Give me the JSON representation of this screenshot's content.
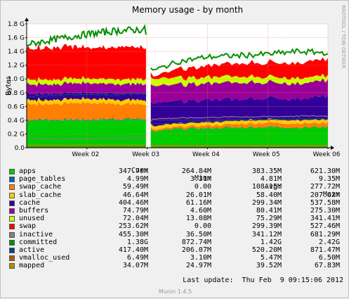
{
  "chart_data": {
    "type": "area",
    "title": "Memory usage - by month",
    "ylabel": "Bytes",
    "side_label": "RRDTOOL / TOBI OETIKER",
    "ylim": [
      0,
      1.8
    ],
    "yticks": [
      "0.0",
      "0.2 G",
      "0.4 G",
      "0.6 G",
      "0.8 G",
      "1.0 G",
      "1.2 G",
      "1.4 G",
      "1.6 G",
      "1.8 G"
    ],
    "ytick_values": [
      0,
      0.2,
      0.4,
      0.6,
      0.8,
      1.0,
      1.2,
      1.4,
      1.6,
      1.8
    ],
    "xticks": [
      "Week 02",
      "Week 03",
      "Week 04",
      "Week 05",
      "Week 06"
    ],
    "xlim": [
      1.0,
      6.0
    ],
    "xtick_positions": [
      2,
      3,
      4,
      5,
      6
    ],
    "gap": [
      2.98,
      3.06
    ],
    "stack_order": [
      "apps",
      "page_tables",
      "swap_cache",
      "slab_cache",
      "cache",
      "buffers",
      "unused",
      "swap"
    ],
    "stacked_profile": {
      "weeks": [
        1.0,
        1.5,
        2.0,
        2.5,
        2.97,
        3.07,
        3.5,
        4.0,
        4.5,
        5.0,
        5.5,
        6.0
      ],
      "apps": [
        0.4,
        0.4,
        0.4,
        0.41,
        0.41,
        0.23,
        0.27,
        0.28,
        0.29,
        0.3,
        0.29,
        0.3
      ],
      "page_tables": [
        0.01,
        0.01,
        0.01,
        0.01,
        0.01,
        0.004,
        0.005,
        0.005,
        0.005,
        0.005,
        0.005,
        0.005
      ],
      "swap_cache": [
        0.23,
        0.23,
        0.24,
        0.22,
        0.22,
        0.02,
        0.03,
        0.04,
        0.05,
        0.06,
        0.06,
        0.06
      ],
      "slab_cache": [
        0.06,
        0.06,
        0.06,
        0.06,
        0.06,
        0.05,
        0.05,
        0.05,
        0.05,
        0.05,
        0.05,
        0.05
      ],
      "cache": [
        0.09,
        0.09,
        0.09,
        0.09,
        0.09,
        0.33,
        0.32,
        0.32,
        0.31,
        0.31,
        0.31,
        0.34
      ],
      "buffers": [
        0.14,
        0.14,
        0.14,
        0.14,
        0.14,
        0.25,
        0.24,
        0.24,
        0.24,
        0.23,
        0.23,
        0.22
      ],
      "unused": [
        0.07,
        0.07,
        0.07,
        0.07,
        0.07,
        0.1,
        0.1,
        0.09,
        0.09,
        0.08,
        0.08,
        0.07
      ],
      "swap": [
        0.45,
        0.46,
        0.46,
        0.47,
        0.47,
        0.03,
        0.12,
        0.17,
        0.19,
        0.21,
        0.22,
        0.25
      ]
    },
    "line_series": {
      "weeks": [
        1.0,
        1.5,
        2.0,
        2.5,
        2.97,
        3.07,
        3.5,
        4.0,
        4.5,
        5.0,
        5.5,
        6.0
      ],
      "committed": [
        1.5,
        1.58,
        1.65,
        1.7,
        1.72,
        1.11,
        1.25,
        1.32,
        1.34,
        1.36,
        1.4,
        1.38
      ],
      "mapped": [
        0.04,
        0.04,
        0.04,
        0.04,
        0.04,
        0.03,
        0.03,
        0.03,
        0.03,
        0.03,
        0.03,
        0.03
      ],
      "vmalloc_used": [
        0.006,
        0.006,
        0.006,
        0.006,
        0.006,
        0.006,
        0.006,
        0.006,
        0.006,
        0.006,
        0.006,
        0.006
      ],
      "inactive": [
        0.14,
        0.12,
        0.13,
        0.14,
        0.15,
        0.42,
        0.43,
        0.44,
        0.45,
        0.45,
        0.46,
        0.46
      ],
      "active": [
        0.75,
        0.76,
        0.78,
        0.77,
        0.79,
        0.34,
        0.36,
        0.38,
        0.4,
        0.41,
        0.42,
        0.42
      ]
    },
    "columns": [
      "Cur:",
      "Min:",
      "Avg:",
      "Max:"
    ],
    "legend": [
      {
        "name": "apps",
        "color": "#00cc00",
        "cur": "347.70M",
        "min": "264.84M",
        "avg": "383.35M",
        "max": "621.30M"
      },
      {
        "name": "page_tables",
        "color": "#0066b3",
        "cur": "4.99M",
        "min": "3.31M",
        "avg": "4.81M",
        "max": "9.35M"
      },
      {
        "name": "swap_cache",
        "color": "#ff8000",
        "cur": "59.49M",
        "min": "0.00",
        "avg": "108.15M",
        "max": "277.72M"
      },
      {
        "name": "slab_cache",
        "color": "#ffcc00",
        "cur": "46.64M",
        "min": "26.01M",
        "avg": "58.40M",
        "max": "207.62M"
      },
      {
        "name": "cache",
        "color": "#330099",
        "cur": "404.46M",
        "min": "61.16M",
        "avg": "299.34M",
        "max": "537.58M"
      },
      {
        "name": "buffers",
        "color": "#990099",
        "cur": "74.79M",
        "min": "4.60M",
        "avg": "80.41M",
        "max": "275.30M"
      },
      {
        "name": "unused",
        "color": "#ccff00",
        "cur": "72.04M",
        "min": "13.08M",
        "avg": "75.29M",
        "max": "341.41M"
      },
      {
        "name": "swap",
        "color": "#ff0000",
        "cur": "253.62M",
        "min": "0.00",
        "avg": "299.39M",
        "max": "527.46M"
      },
      {
        "name": "inactive",
        "color": "#808080",
        "cur": "455.30M",
        "min": "36.50M",
        "avg": "341.12M",
        "max": "681.29M"
      },
      {
        "name": "committed",
        "color": "#008f00",
        "cur": "1.38G",
        "min": "872.74M",
        "avg": "1.42G",
        "max": "2.42G"
      },
      {
        "name": "active",
        "color": "#00487d",
        "cur": "417.40M",
        "min": "206.07M",
        "avg": "520.20M",
        "max": "871.47M"
      },
      {
        "name": "vmalloc_used",
        "color": "#b35a00",
        "cur": "6.49M",
        "min": "3.10M",
        "avg": "5.47M",
        "max": "6.50M"
      },
      {
        "name": "mapped",
        "color": "#b38f00",
        "cur": "34.07M",
        "min": "24.97M",
        "avg": "39.52M",
        "max": "67.83M"
      }
    ],
    "last_update": "Last update:  Thu Feb  9 09:15:06 2012",
    "version": "Munin 1.4.5"
  }
}
